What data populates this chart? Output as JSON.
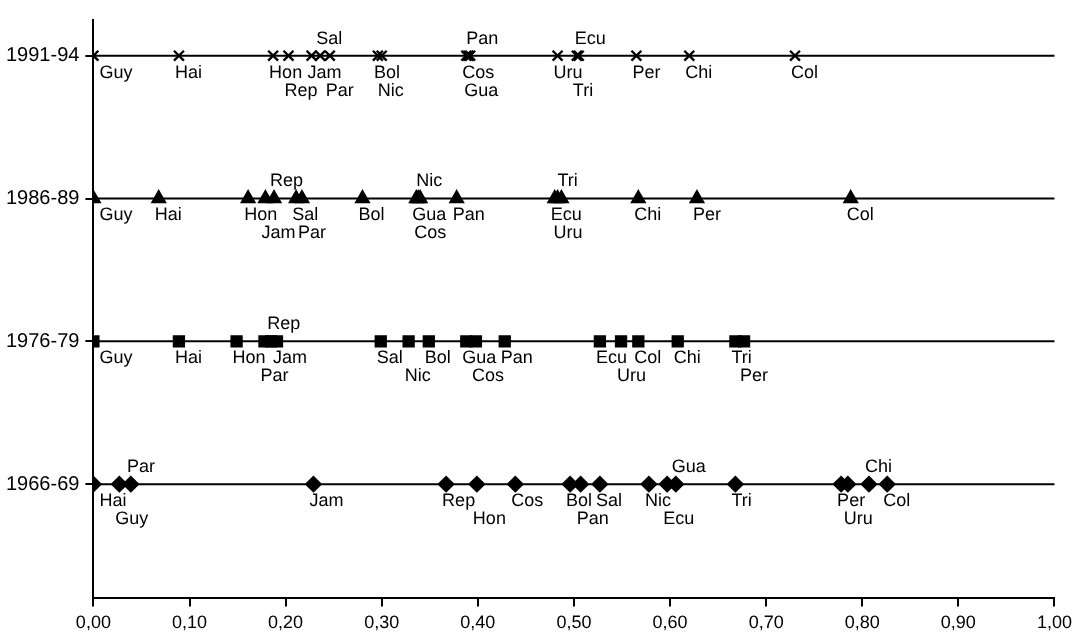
{
  "chart_data": {
    "type": "scatter",
    "orientation": "horizontal",
    "categories": [
      "1991-94",
      "1986-89",
      "1976-79",
      "1966-69"
    ],
    "xlim": [
      0,
      1
    ],
    "xticks": [
      {
        "value": 0,
        "label": "0,00"
      },
      {
        "value": 0.1,
        "label": "0,10"
      },
      {
        "value": 0.2,
        "label": "0,20"
      },
      {
        "value": 0.3,
        "label": "0,30"
      },
      {
        "value": 0.4,
        "label": "0,40"
      },
      {
        "value": 0.5,
        "label": "0,50"
      },
      {
        "value": 0.6,
        "label": "0,60"
      },
      {
        "value": 0.7,
        "label": "0,70"
      },
      {
        "value": 0.8,
        "label": "0,80"
      },
      {
        "value": 0.9,
        "label": "0,90"
      },
      {
        "value": 1,
        "label": "1,00"
      }
    ],
    "grid": false,
    "legend": false,
    "series": [
      {
        "color": "#000000",
        "marker": "cross",
        "x": [
          "1991-94",
          "1991-94",
          "1991-94",
          "1991-94",
          "1991-94",
          "1991-94",
          "1991-94",
          "1991-94",
          "1991-94",
          "1991-94",
          "1991-94",
          "1991-94",
          "1991-94",
          "1991-94",
          "1991-94",
          "1991-94",
          "1991-94",
          "1991-94"
        ],
        "values": [
          0,
          0.089,
          0.187,
          0.203,
          0.227,
          0.236,
          0.246,
          0.296,
          0.3,
          0.388,
          0.39,
          0.392,
          0.483,
          0.503,
          0.505,
          0.565,
          0.62,
          0.73
        ],
        "value_labels": [
          "Guy",
          "Hai",
          "Hon",
          "Rep",
          "Jam",
          "Sal",
          "Par",
          "Bol",
          "Nic",
          "Cos",
          "Gua",
          "Pan",
          "Uru",
          "Tri",
          "Ecu",
          "Per",
          "Chi",
          "Col"
        ]
      },
      {
        "color": "#000000",
        "marker": "triangle",
        "x": [
          "1986-89",
          "1986-89",
          "1986-89",
          "1986-89",
          "1986-89",
          "1986-89",
          "1986-89",
          "1986-89",
          "1986-89",
          "1986-89",
          "1986-89",
          "1986-89",
          "1986-89",
          "1986-89",
          "1986-89",
          "1986-89",
          "1986-89",
          "1986-89"
        ],
        "values": [
          0,
          0.068,
          0.161,
          0.179,
          0.188,
          0.211,
          0.217,
          0.28,
          0.336,
          0.338,
          0.34,
          0.378,
          0.48,
          0.483,
          0.487,
          0.567,
          0.628,
          0.788
        ],
        "value_labels": [
          "Guy",
          "Hai",
          "Hon",
          "Jam",
          "Rep",
          "Sal",
          "Par",
          "Bol",
          "Gua",
          "Cos",
          "Nic",
          "Pan",
          "Ecu",
          "Uru",
          "Tri",
          "Chi",
          "Per",
          "Col"
        ]
      },
      {
        "color": "#000000",
        "marker": "square",
        "x": [
          "1976-79",
          "1976-79",
          "1976-79",
          "1976-79",
          "1976-79",
          "1976-79",
          "1976-79",
          "1976-79",
          "1976-79",
          "1976-79",
          "1976-79",
          "1976-79",
          "1976-79",
          "1976-79",
          "1976-79",
          "1976-79",
          "1976-79",
          "1976-79"
        ],
        "values": [
          0,
          0.089,
          0.149,
          0.178,
          0.185,
          0.191,
          0.299,
          0.328,
          0.349,
          0.388,
          0.398,
          0.428,
          0.527,
          0.549,
          0.567,
          0.608,
          0.668,
          0.677
        ],
        "value_labels": [
          "Guy",
          "Hai",
          "Hon",
          "Par",
          "Rep",
          "Jam",
          "Sal",
          "Nic",
          "Bol",
          "Gua",
          "Cos",
          "Pan",
          "Ecu",
          "Uru",
          "Col",
          "Chi",
          "Tri",
          "Per"
        ]
      },
      {
        "color": "#000000",
        "marker": "diamond",
        "x": [
          "1966-69",
          "1966-69",
          "1966-69",
          "1966-69",
          "1966-69",
          "1966-69",
          "1966-69",
          "1966-69",
          "1966-69",
          "1966-69",
          "1966-69",
          "1966-69",
          "1966-69",
          "1966-69",
          "1966-69",
          "1966-69",
          "1966-69",
          "1966-69"
        ],
        "values": [
          0,
          0.027,
          0.039,
          0.229,
          0.367,
          0.399,
          0.439,
          0.496,
          0.507,
          0.527,
          0.578,
          0.597,
          0.606,
          0.668,
          0.778,
          0.785,
          0.807,
          0.826
        ],
        "value_labels": [
          "Hai",
          "Guy",
          "Par",
          "Jam",
          "Rep",
          "Hon",
          "Cos",
          "Bol",
          "Pan",
          "Sal",
          "Nic",
          "Ecu",
          "Gua",
          "Tri",
          "Per",
          "Uru",
          "Chi",
          "Col"
        ]
      }
    ]
  }
}
